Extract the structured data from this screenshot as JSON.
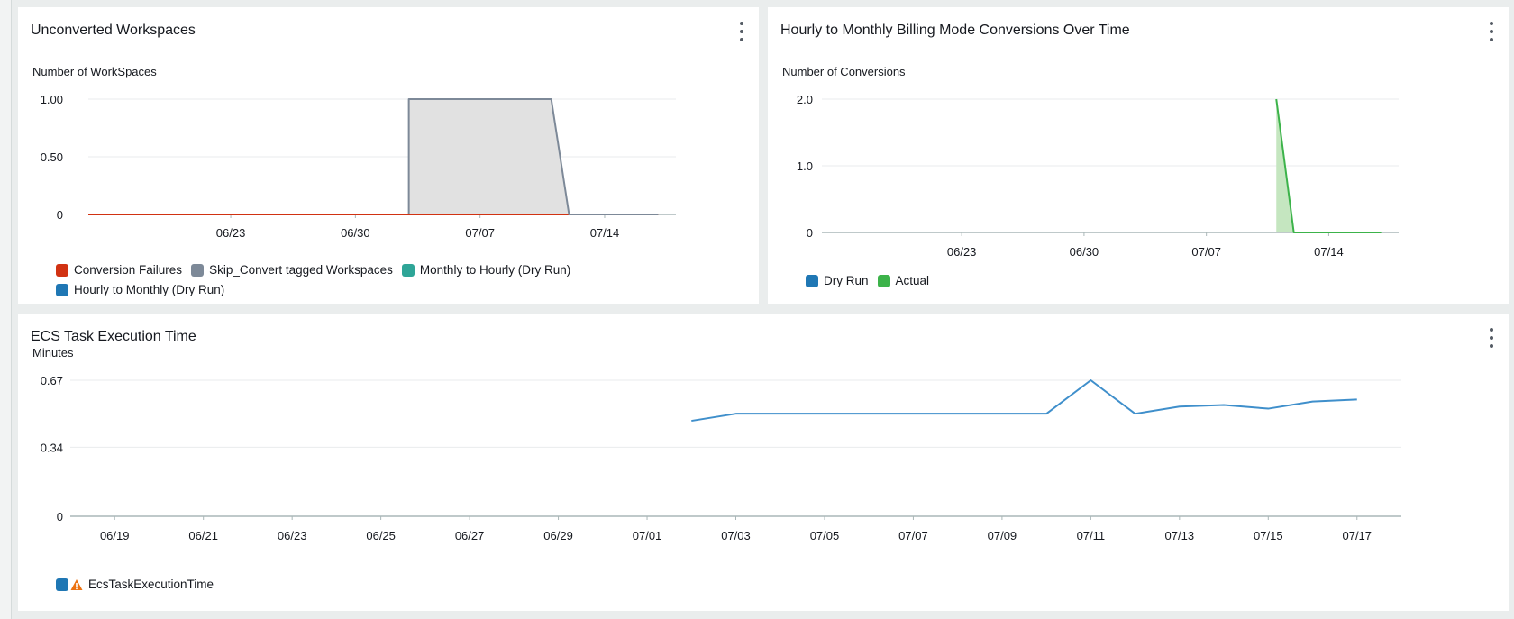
{
  "widgets": {
    "w1": {
      "title": "Unconverted Workspaces"
    },
    "w2": {
      "title": "Hourly to Monthly Billing Mode Conversions Over Time"
    },
    "w3": {
      "title": "ECS Task Execution Time"
    }
  },
  "colors": {
    "red": "#d13212",
    "gray": "#7d8998",
    "gray_fill": "#e1e1e1",
    "green": "#2ea597",
    "green_line": "#3cb34a",
    "green_fill": "#c5e6c0",
    "blue": "#1f77b4",
    "blue_line": "#3f8fcb",
    "warn_orange": "#ec7211",
    "grid": "#e9ebed",
    "axis": "#aab7b8"
  },
  "chart_data": [
    {
      "id": "unconverted",
      "type": "area",
      "title": "Unconverted Workspaces",
      "ylabel": "Number of WorkSpaces",
      "xlabel": "",
      "x_domain": [
        "06/15",
        "07/18"
      ],
      "x_ticks": [
        "06/23",
        "06/30",
        "07/07",
        "07/14"
      ],
      "y_ticks": [
        "0",
        "0.50",
        "1.00"
      ],
      "y_tick_values": [
        0,
        0.5,
        1.0
      ],
      "ylim": [
        0,
        1
      ],
      "grid": true,
      "series": [
        {
          "name": "Conversion Failures",
          "color_key": "red",
          "x": [
            "06/15",
            "07/03",
            "07/17"
          ],
          "y": [
            0,
            0,
            0
          ]
        },
        {
          "name": "Skip_Convert tagged Workspaces",
          "color_key": "gray",
          "fill": true,
          "x": [
            "07/03",
            "07/03",
            "07/11",
            "07/12",
            "07/17"
          ],
          "y": [
            0,
            1,
            1,
            0,
            0
          ]
        },
        {
          "name": "Monthly to Hourly (Dry Run)",
          "color_key": "green",
          "x": [],
          "y": []
        },
        {
          "name": "Hourly to Monthly (Dry Run)",
          "color_key": "blue",
          "x": [],
          "y": []
        }
      ],
      "legend_rows": [
        [
          "Conversion Failures",
          "Skip_Convert tagged Workspaces",
          "Monthly to Hourly (Dry Run)"
        ],
        [
          "Hourly to Monthly (Dry Run)"
        ]
      ],
      "legend_colors": [
        [
          "red",
          "gray",
          "green"
        ],
        [
          "blue"
        ]
      ]
    },
    {
      "id": "conversions",
      "type": "area",
      "title": "Hourly to Monthly Billing Mode Conversions Over Time",
      "ylabel": "Number of Conversions",
      "xlabel": "",
      "x_domain": [
        "06/15",
        "07/18"
      ],
      "x_ticks": [
        "06/23",
        "06/30",
        "07/07",
        "07/14"
      ],
      "y_ticks": [
        "0",
        "1.0",
        "2.0"
      ],
      "y_tick_values": [
        0,
        1.0,
        2.0
      ],
      "ylim": [
        0,
        2
      ],
      "grid": true,
      "series": [
        {
          "name": "Dry Run",
          "color_key": "blue",
          "x": [],
          "y": []
        },
        {
          "name": "Actual",
          "color_key": "green_line",
          "fill": true,
          "x": [
            "07/11",
            "07/12",
            "07/13",
            "07/17"
          ],
          "y": [
            2,
            0,
            0,
            0
          ]
        }
      ],
      "legend_rows": [
        [
          "Dry Run",
          "Actual"
        ]
      ],
      "legend_colors": [
        [
          "blue",
          "green_line"
        ]
      ]
    },
    {
      "id": "ecs",
      "type": "line",
      "title": "ECS Task Execution Time",
      "ylabel": "Minutes",
      "xlabel": "",
      "x_domain": [
        "06/18",
        "07/18"
      ],
      "x_ticks": [
        "06/19",
        "06/21",
        "06/23",
        "06/25",
        "06/27",
        "06/29",
        "07/01",
        "07/03",
        "07/05",
        "07/07",
        "07/09",
        "07/11",
        "07/13",
        "07/15",
        "07/17"
      ],
      "y_ticks": [
        "0",
        "0.34",
        "0.67"
      ],
      "y_tick_values": [
        0,
        0.34,
        0.67
      ],
      "ylim": [
        0,
        0.67
      ],
      "grid": true,
      "series": [
        {
          "name": "EcsTaskExecutionTime",
          "color_key": "blue_line",
          "x": [
            "07/02",
            "07/03",
            "07/04",
            "07/05",
            "07/06",
            "07/07",
            "07/08",
            "07/09",
            "07/10",
            "07/11",
            "07/12",
            "07/13",
            "07/14",
            "07/15",
            "07/16",
            "07/17"
          ],
          "y": [
            0.47,
            0.505,
            0.505,
            0.505,
            0.505,
            0.505,
            0.505,
            0.505,
            0.505,
            0.67,
            0.505,
            0.54,
            0.548,
            0.53,
            0.565,
            0.575
          ]
        }
      ],
      "legend_rows": [
        [
          "EcsTaskExecutionTime"
        ]
      ],
      "legend_colors": [
        [
          "blue"
        ]
      ],
      "legend_warning": true
    }
  ]
}
